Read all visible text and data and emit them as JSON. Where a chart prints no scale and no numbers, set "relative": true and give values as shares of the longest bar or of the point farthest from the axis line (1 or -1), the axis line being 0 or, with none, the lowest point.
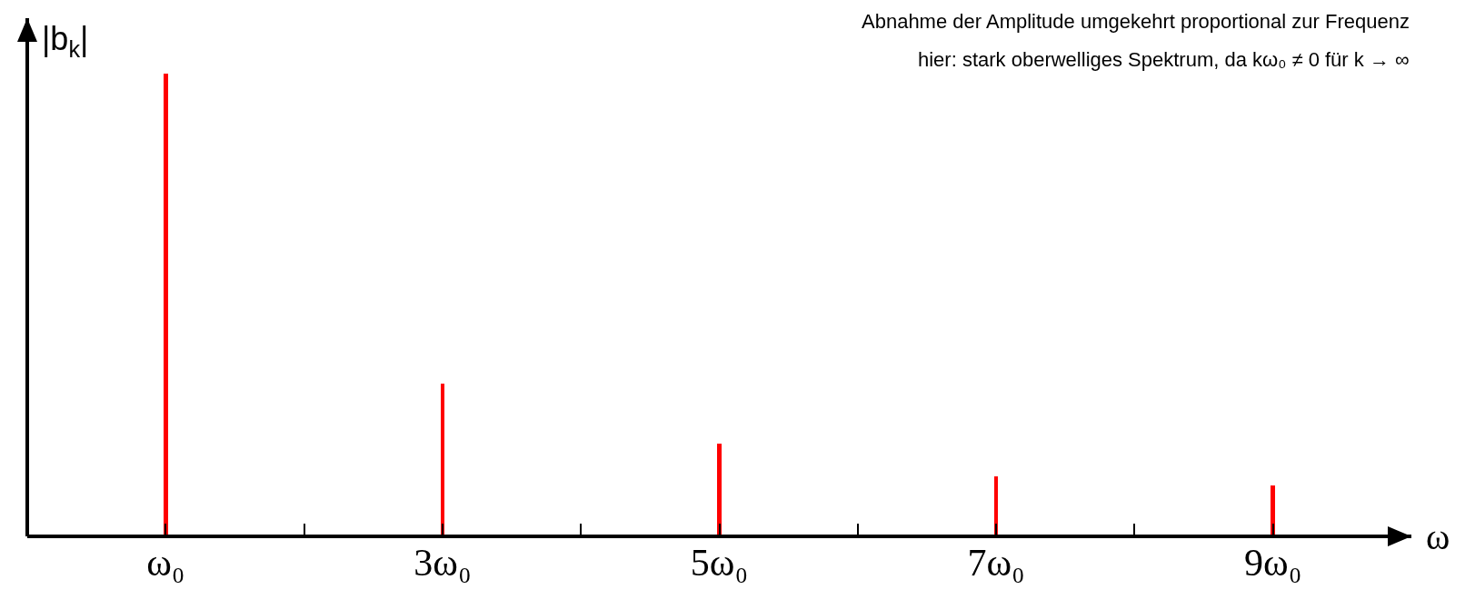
{
  "chart_data": {
    "type": "bar",
    "relative": true,
    "xlabel": "ω",
    "ylabel": "|b$_{k}$|",
    "x": [
      1,
      3,
      5,
      7,
      9
    ],
    "values": [
      1,
      0.33,
      0.2,
      0.13,
      0.11
    ],
    "color": "#ff0000",
    "xlim": [
      0,
      10
    ],
    "xticks": [
      {
        "value": 1,
        "label": "ω₀"
      },
      {
        "value": 2,
        "label": null
      },
      {
        "value": 3,
        "label": "3ω₀"
      },
      {
        "value": 4,
        "label": null
      },
      {
        "value": 5,
        "label": "5ω₀"
      },
      {
        "value": 6,
        "label": null
      },
      {
        "value": 7,
        "label": "7ω₀"
      },
      {
        "value": 8,
        "label": null
      },
      {
        "value": 9,
        "label": "9ω₀"
      }
    ],
    "tick_labels": "x",
    "grid": false,
    "annotations": [
      "Abnahme der Amplitude umgekehrt proportional zur Frequenz",
      "hier: stark oberwelliges Spektrum, da kω₀ ≠ 0 für k → ∞"
    ]
  }
}
